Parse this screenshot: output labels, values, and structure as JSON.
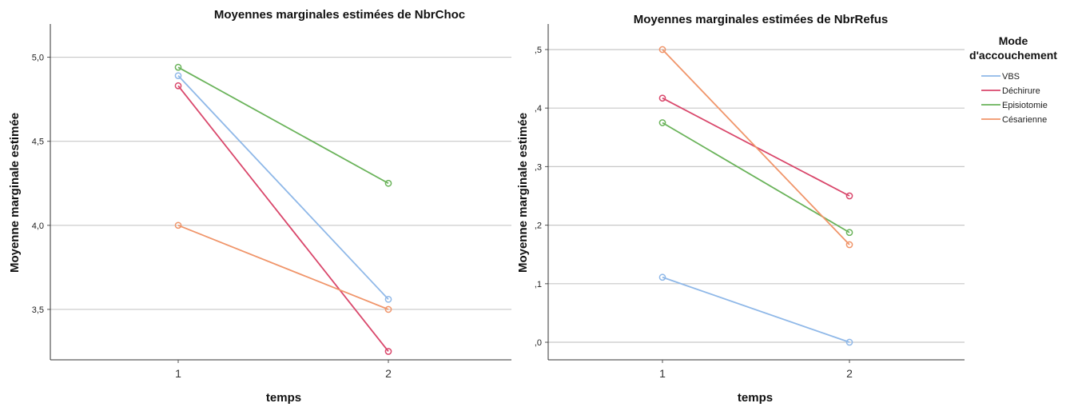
{
  "chart_data": [
    {
      "type": "line",
      "title": "Moyennes marginales estimées de NbrChoc",
      "xlabel": "temps",
      "ylabel": "Moyenne marginale estimée",
      "categories": [
        "1",
        "2"
      ],
      "yticks": [
        "3,5",
        "4,0",
        "4,5",
        "5,0"
      ],
      "ylim": [
        3.2,
        5.15
      ],
      "grid": true,
      "series": [
        {
          "name": "VBS",
          "values": [
            4.89,
            3.56
          ],
          "color": "#8fb8e8"
        },
        {
          "name": "Déchirure",
          "values": [
            4.83,
            3.25
          ],
          "color": "#d9476b"
        },
        {
          "name": "Episiotomie",
          "values": [
            4.94,
            4.25
          ],
          "color": "#6ab35a"
        },
        {
          "name": "Césarienne",
          "values": [
            4.0,
            3.5
          ],
          "color": "#f0956a"
        }
      ]
    },
    {
      "type": "line",
      "title": "Moyennes marginales estimées de NbrRefus",
      "xlabel": "temps",
      "ylabel": "Moyenne marginale estimée",
      "categories": [
        "1",
        "2"
      ],
      "yticks": [
        ",0",
        ",1",
        ",2",
        ",3",
        ",4",
        ",5"
      ],
      "ylim": [
        -0.03,
        0.53
      ],
      "grid": true,
      "legend": {
        "title_line1": "Mode",
        "title_line2": "d'accouchement",
        "placement": "right"
      },
      "series": [
        {
          "name": "VBS",
          "values": [
            0.111,
            0.0
          ],
          "color": "#8fb8e8"
        },
        {
          "name": "Déchirure",
          "values": [
            0.417,
            0.25
          ],
          "color": "#d9476b"
        },
        {
          "name": "Episiotomie",
          "values": [
            0.375,
            0.1875
          ],
          "color": "#6ab35a"
        },
        {
          "name": "Césarienne",
          "values": [
            0.5,
            0.1667
          ],
          "color": "#f0956a"
        }
      ]
    }
  ]
}
